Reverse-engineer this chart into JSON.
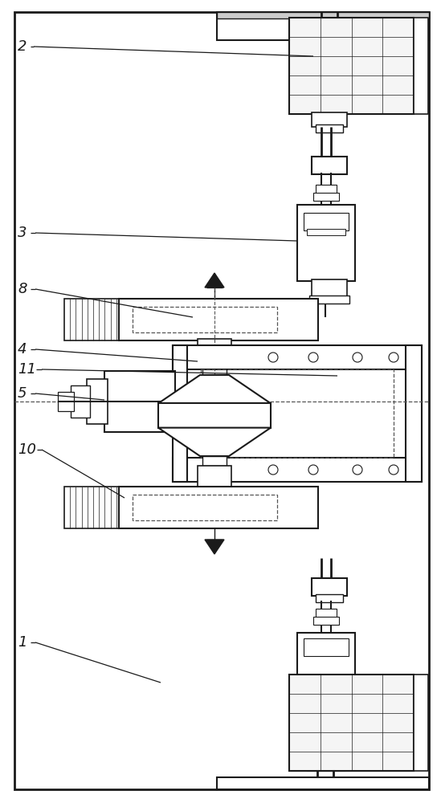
{
  "bg_color": "#ffffff",
  "lc": "#1a1a1a",
  "dc": "#555555",
  "fig_width": 5.49,
  "fig_height": 10.0
}
